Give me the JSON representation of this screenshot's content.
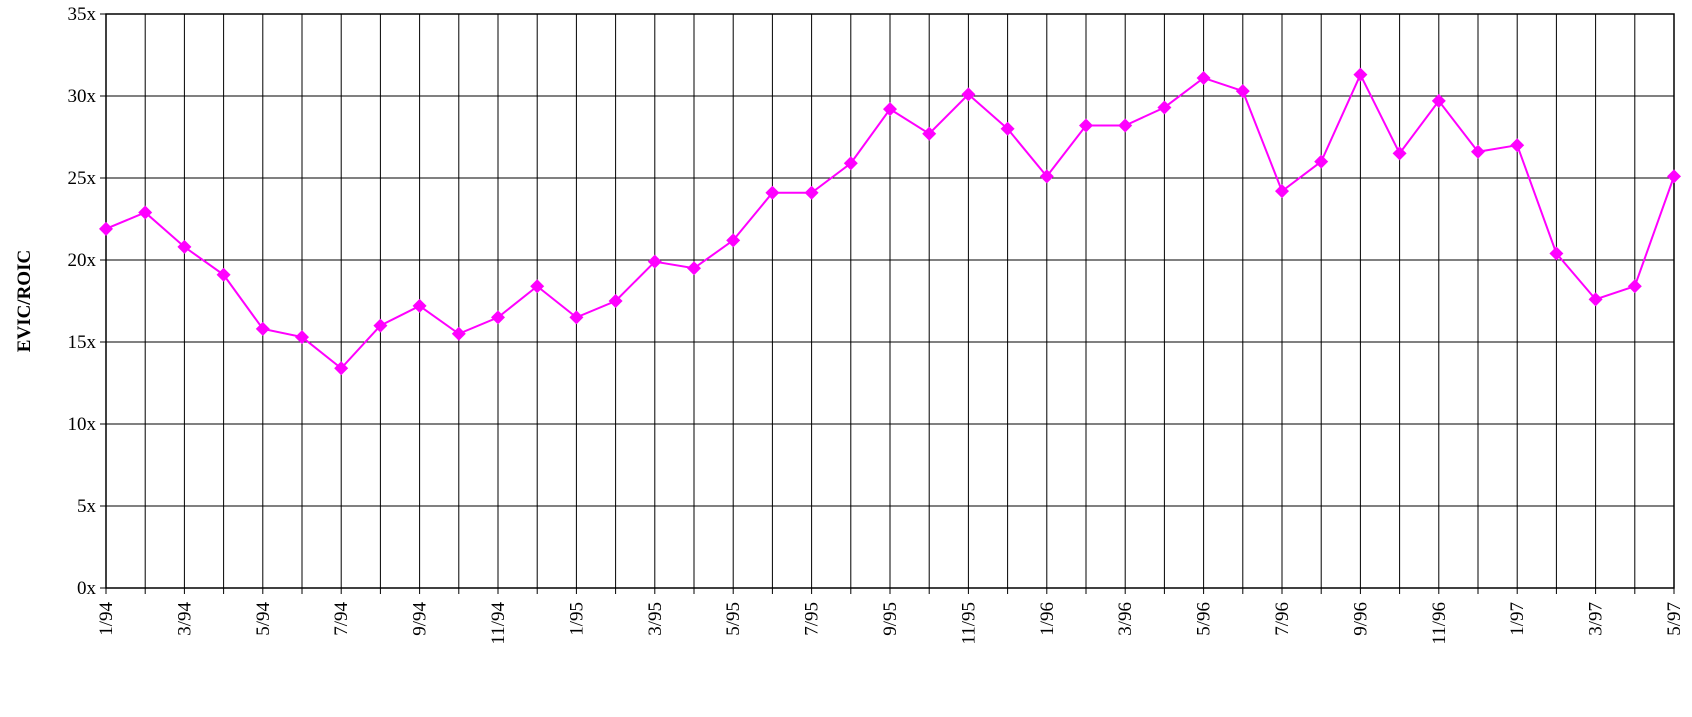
{
  "chart_data": {
    "type": "line",
    "y_label": "EVIC/ROIC",
    "categories": [
      "1/94",
      null,
      "3/94",
      null,
      "5/94",
      null,
      "7/94",
      null,
      "9/94",
      null,
      "11/94",
      null,
      "1/95",
      null,
      "3/95",
      null,
      "5/95",
      null,
      "7/95",
      null,
      "9/95",
      null,
      "11/95",
      null,
      "1/96",
      null,
      "3/96",
      null,
      "5/96",
      null,
      "7/96",
      null,
      "9/96",
      null,
      "11/96",
      null,
      "1/97",
      null,
      "3/97",
      null,
      "5/97"
    ],
    "series": [
      {
        "name": "EVIC/ROIC",
        "color": "#ff00ff",
        "values": [
          21.9,
          22.9,
          20.8,
          19.1,
          15.8,
          15.3,
          13.4,
          16.0,
          17.2,
          15.5,
          16.5,
          18.4,
          16.5,
          17.5,
          19.9,
          19.5,
          21.2,
          24.1,
          24.1,
          25.9,
          29.2,
          27.7,
          30.1,
          28.0,
          25.1,
          28.2,
          28.2,
          29.3,
          31.1,
          30.3,
          24.2,
          26.0,
          31.3,
          26.5,
          29.7,
          26.6,
          27.0,
          20.4,
          17.6,
          18.4,
          25.1
        ]
      }
    ],
    "ylim": [
      0,
      35
    ],
    "yticks": [
      {
        "value": 0,
        "label": "0x"
      },
      {
        "value": 5,
        "label": "5x"
      },
      {
        "value": 10,
        "label": "10x"
      },
      {
        "value": 15,
        "label": "15x"
      },
      {
        "value": 20,
        "label": "20x"
      },
      {
        "value": 25,
        "label": "25x"
      },
      {
        "value": 30,
        "label": "30x"
      },
      {
        "value": 35,
        "label": "35x"
      }
    ],
    "grid": true
  }
}
